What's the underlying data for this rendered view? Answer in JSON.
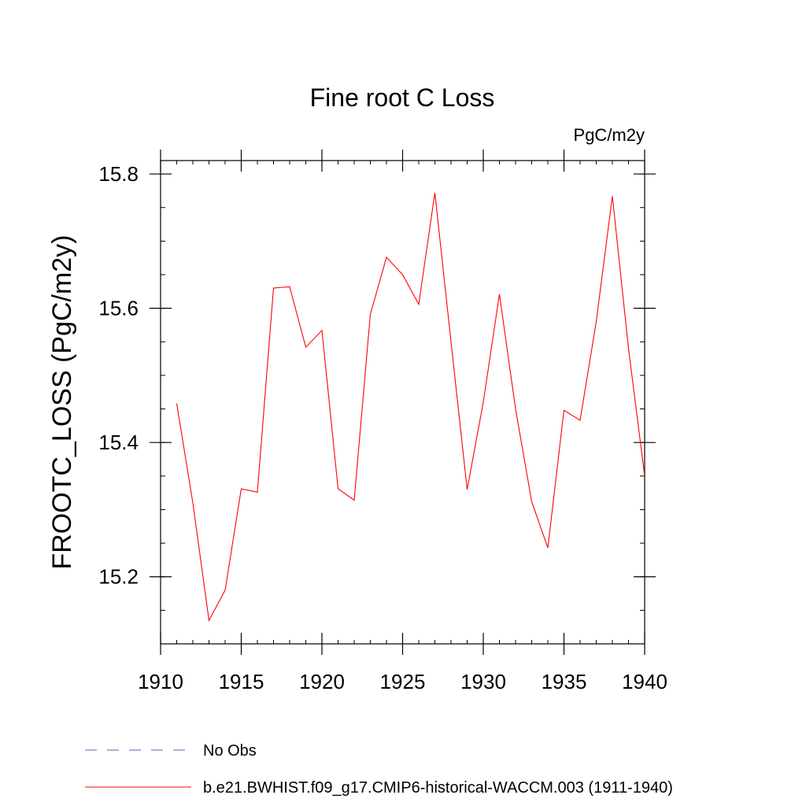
{
  "chart_data": {
    "type": "line",
    "title": "Fine root C Loss",
    "units_label": "PgC/m2y",
    "ylabel": "FROOTC_LOSS  (PgC/m2y)",
    "xlabel": "",
    "xlim": [
      1910,
      1940
    ],
    "ylim": [
      15.1,
      15.82
    ],
    "x_ticks": [
      1910,
      1915,
      1920,
      1925,
      1930,
      1935,
      1940
    ],
    "x_tick_labels": [
      "1910",
      "1915",
      "1920",
      "1925",
      "1930",
      "1935",
      "1940"
    ],
    "y_ticks": [
      15.2,
      15.4,
      15.6,
      15.8
    ],
    "y_tick_labels": [
      "15.2",
      "15.4",
      "15.6",
      "15.8"
    ],
    "y_minor_step": 0.05,
    "x_minor_step": 1,
    "grid": false,
    "legend_position": "bottom-left",
    "series": [
      {
        "name": "b.e21.BWHIST.f09_g17.CMIP6-historical-WACCM.003 (1911-1940)",
        "color": "#ff0000",
        "style": "solid",
        "x": [
          1911,
          1912,
          1913,
          1914,
          1915,
          1916,
          1917,
          1918,
          1919,
          1920,
          1921,
          1922,
          1923,
          1924,
          1925,
          1926,
          1927,
          1928,
          1929,
          1930,
          1931,
          1932,
          1933,
          1934,
          1935,
          1936,
          1937,
          1938,
          1939,
          1940
        ],
        "values": [
          15.458,
          15.31,
          15.135,
          15.18,
          15.331,
          15.326,
          15.63,
          15.632,
          15.542,
          15.567,
          15.331,
          15.314,
          15.591,
          15.676,
          15.65,
          15.606,
          15.772,
          15.55,
          15.33,
          15.46,
          15.621,
          15.45,
          15.312,
          15.243,
          15.448,
          15.433,
          15.58,
          15.767,
          15.54,
          15.35
        ]
      }
    ],
    "legend": [
      {
        "label": "No Obs",
        "color": "#6b5bbd",
        "style": "dashed"
      },
      {
        "label": "b.e21.BWHIST.f09_g17.CMIP6-historical-WACCM.003 (1911-1940)",
        "color": "#ff0000",
        "style": "solid"
      }
    ]
  }
}
